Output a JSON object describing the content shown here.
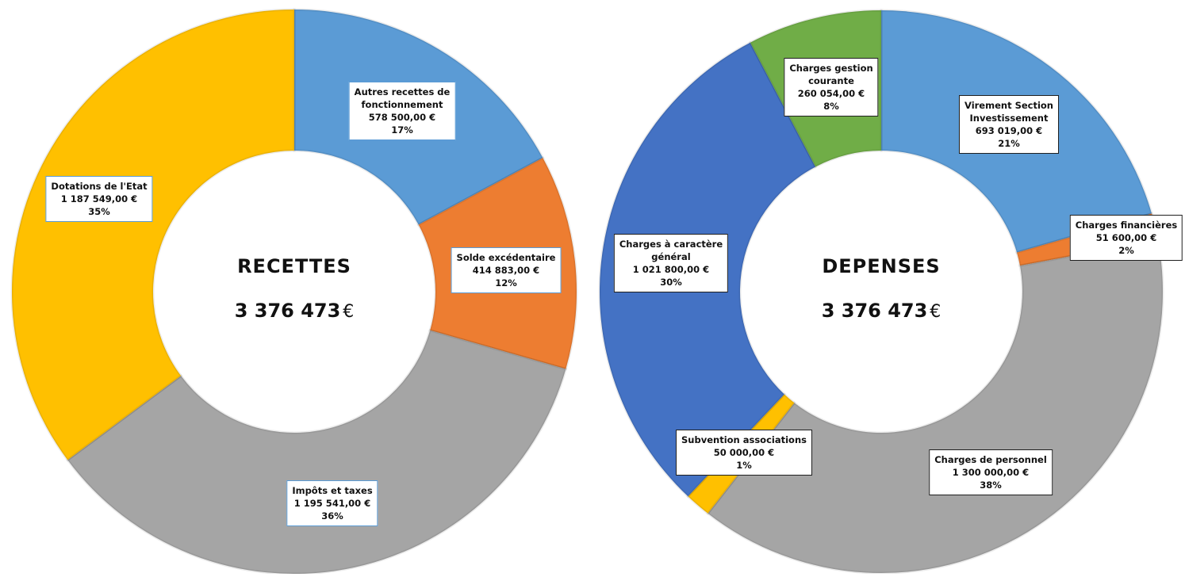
{
  "chart_data": [
    {
      "type": "pie",
      "donut": true,
      "center_title": "RECETTES",
      "center_total": "3 376 473",
      "currency_symbol": "€",
      "segments": [
        {
          "name": "Autres recettes de fonctionnement",
          "name_lines": [
            "Autres recettes de",
            "fonctionnement"
          ],
          "amount_label": "578 500,00 €",
          "value": 578500,
          "percent_label": "17%",
          "color": "#5b9bd5"
        },
        {
          "name": "Solde excédentaire",
          "name_lines": [
            "Solde excédentaire"
          ],
          "amount_label": "414 883,00 €",
          "value": 414883,
          "percent_label": "12%",
          "color": "#ed7d31"
        },
        {
          "name": "Impôts et taxes",
          "name_lines": [
            "Impôts et taxes"
          ],
          "amount_label": "1 195 541,00 €",
          "value": 1195541,
          "percent_label": "36%",
          "color": "#a5a5a5"
        },
        {
          "name": "Dotations de l'Etat",
          "name_lines": [
            "Dotations de l'Etat"
          ],
          "amount_label": "1 187 549,00 €",
          "value": 1187549,
          "percent_label": "35%",
          "color": "#ffc000"
        }
      ]
    },
    {
      "type": "pie",
      "donut": true,
      "center_title": "DEPENSES",
      "center_total": "3 376 473",
      "currency_symbol": "€",
      "segments": [
        {
          "name": "Virement Section Investissement",
          "name_lines": [
            "Virement Section",
            "Investissement"
          ],
          "amount_label": "693 019,00 €",
          "value": 693019,
          "percent_label": "21%",
          "color": "#5b9bd5"
        },
        {
          "name": "Charges financières",
          "name_lines": [
            "Charges financières"
          ],
          "amount_label": "51 600,00 €",
          "value": 51600,
          "percent_label": "2%",
          "color": "#ed7d31"
        },
        {
          "name": "Charges de personnel",
          "name_lines": [
            "Charges de personnel"
          ],
          "amount_label": "1 300 000,00 €",
          "value": 1300000,
          "percent_label": "38%",
          "color": "#a5a5a5"
        },
        {
          "name": "Subvention associations",
          "name_lines": [
            "Subvention associations"
          ],
          "amount_label": "50 000,00 €",
          "value": 50000,
          "percent_label": "1%",
          "color": "#ffc000"
        },
        {
          "name": "Charges à caractère général",
          "name_lines": [
            "Charges à caractère",
            "général"
          ],
          "amount_label": "1 021 800,00 €",
          "value": 1021800,
          "percent_label": "30%",
          "color": "#4472c4"
        },
        {
          "name": "Charges gestion courante",
          "name_lines": [
            "Charges gestion",
            "courante"
          ],
          "amount_label": "260 054,00 €",
          "value": 260054,
          "percent_label": "8%",
          "color": "#70ad47"
        }
      ]
    }
  ]
}
